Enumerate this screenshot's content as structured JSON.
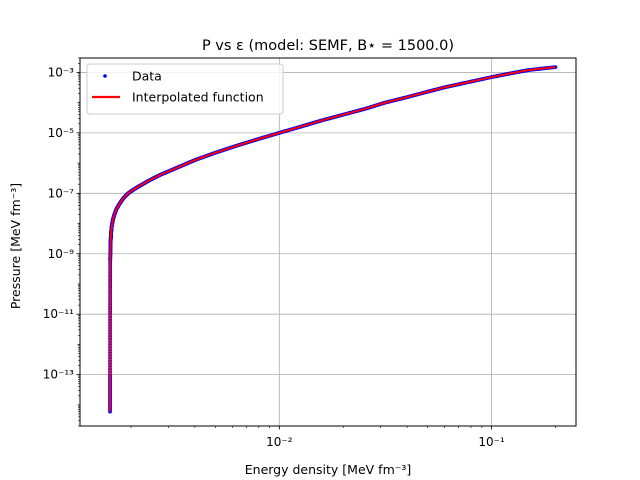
{
  "chart_data": {
    "type": "scatter",
    "title": "P vs ε (model: SEMF, B⋆ = 1500.0)",
    "xlabel": "Energy density [MeV fm⁻³]",
    "ylabel": "Pressure [MeV fm⁻³]",
    "x_scale": "log",
    "y_scale": "log",
    "xlim": [
      0.00115,
      0.25
    ],
    "ylim": [
      2e-15,
      0.003
    ],
    "grid": true,
    "legend_position": "top-left",
    "x_ticks": [
      {
        "value": 0.01,
        "label": "10⁻²"
      },
      {
        "value": 0.1,
        "label": "10⁻¹"
      }
    ],
    "y_ticks": [
      {
        "value": 1e-13,
        "label": "10⁻¹³"
      },
      {
        "value": 1e-11,
        "label": "10⁻¹¹"
      },
      {
        "value": 1e-09,
        "label": "10⁻⁹"
      },
      {
        "value": 1e-07,
        "label": "10⁻⁷"
      },
      {
        "value": 1e-05,
        "label": "10⁻⁵"
      },
      {
        "value": 0.001,
        "label": "10⁻³"
      }
    ],
    "series": [
      {
        "name": "Data",
        "kind": "markers",
        "color": "#0000ff",
        "x": [
          0.001593,
          0.001593,
          0.001594,
          0.001596,
          0.0016,
          0.001605,
          0.001612,
          0.001622,
          0.001642,
          0.001671,
          0.001707,
          0.001765,
          0.001844,
          0.00194,
          0.00208,
          0.00221,
          0.00242,
          0.00273,
          0.00313,
          0.00351,
          0.00405,
          0.005,
          0.00625,
          0.008,
          0.01,
          0.0126,
          0.0156,
          0.02,
          0.0255,
          0.0315,
          0.039,
          0.05,
          0.06,
          0.075,
          0.1,
          0.125,
          0.15,
          0.2
        ],
        "y": [
          6e-15,
          1e-13,
          1e-11,
          6e-10,
          1.6e-09,
          3e-09,
          5e-09,
          8e-09,
          1.3e-08,
          2e-08,
          3e-08,
          4.5e-08,
          7e-08,
          1e-07,
          1.4e-07,
          1.8e-07,
          2.6e-07,
          4e-07,
          6e-07,
          8.5e-07,
          1.3e-06,
          2.2e-06,
          3.7e-06,
          6.3e-06,
          1e-05,
          1.6e-05,
          2.5e-05,
          4e-05,
          6.3e-05,
          0.0001,
          0.000145,
          0.00023,
          0.00032,
          0.00045,
          0.0007,
          0.00095,
          0.0012,
          0.0015
        ]
      },
      {
        "name": "Interpolated function",
        "kind": "line",
        "color": "#ff0000",
        "x": [
          0.001593,
          0.001593,
          0.001594,
          0.001596,
          0.0016,
          0.001605,
          0.001612,
          0.001622,
          0.001642,
          0.001671,
          0.001707,
          0.001765,
          0.001844,
          0.00194,
          0.00208,
          0.00221,
          0.00242,
          0.00273,
          0.00313,
          0.00351,
          0.00405,
          0.005,
          0.00625,
          0.008,
          0.01,
          0.0126,
          0.0156,
          0.02,
          0.0255,
          0.0315,
          0.039,
          0.05,
          0.06,
          0.075,
          0.1,
          0.125,
          0.15,
          0.2
        ],
        "y": [
          6e-15,
          1e-13,
          1e-11,
          6e-10,
          1.6e-09,
          3e-09,
          5e-09,
          8e-09,
          1.3e-08,
          2e-08,
          3e-08,
          4.5e-08,
          7e-08,
          1e-07,
          1.4e-07,
          1.8e-07,
          2.6e-07,
          4e-07,
          6e-07,
          8.5e-07,
          1.3e-06,
          2.2e-06,
          3.7e-06,
          6.3e-06,
          1e-05,
          1.6e-05,
          2.5e-05,
          4e-05,
          6.3e-05,
          0.0001,
          0.000145,
          0.00023,
          0.00032,
          0.00045,
          0.0007,
          0.00095,
          0.0012,
          0.0015
        ]
      }
    ]
  }
}
